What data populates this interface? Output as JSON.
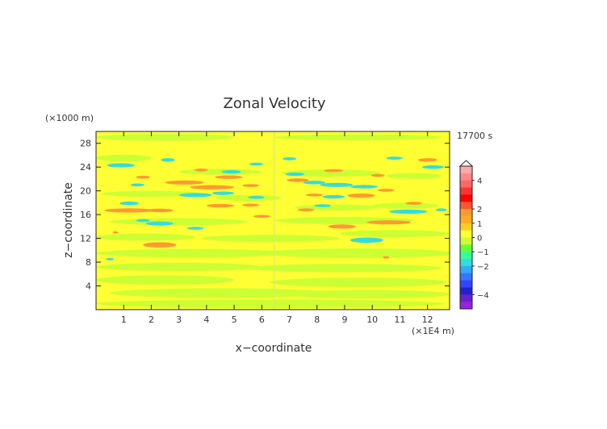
{
  "chart_data": {
    "type": "heatmap",
    "title": "Zonal Velocity",
    "xlabel": "x−coordinate",
    "ylabel": "z−coordinate",
    "x_unit": "(×1E4 m)",
    "y_unit": "(×1000 m)",
    "time_label": "17700 s",
    "x_ticks": [
      "1",
      "2",
      "3",
      "4",
      "5",
      "6",
      "7",
      "8",
      "9",
      "10",
      "11",
      "12"
    ],
    "y_ticks": [
      "4",
      "8",
      "12",
      "16",
      "20",
      "24",
      "28"
    ],
    "xlim": [
      0,
      12.8
    ],
    "ylim": [
      0,
      30
    ],
    "colorbar": {
      "labels": [
        "4",
        "2",
        "1",
        "0",
        "−1",
        "−2",
        "−4"
      ],
      "label_values": [
        4,
        2,
        1,
        0,
        -1,
        -2,
        -4
      ],
      "range": [
        -5,
        5
      ]
    },
    "colors": {
      "background": "#ffff33",
      "neutral": "#ccff33",
      "pos1": "#ff9933",
      "neg1": "#33dddd"
    },
    "regions": [
      {
        "type": "neutral",
        "x": 2.5,
        "y": 29,
        "rx": 2.5,
        "ry": 0.6
      },
      {
        "type": "neutral",
        "x": 9.5,
        "y": 29,
        "rx": 3,
        "ry": 0.5
      },
      {
        "type": "neutral",
        "x": 1,
        "y": 25.5,
        "rx": 1,
        "ry": 0.6
      },
      {
        "type": "neutral",
        "x": 4.5,
        "y": 23.2,
        "rx": 1.5,
        "ry": 0.5
      },
      {
        "type": "neutral",
        "x": 8.5,
        "y": 23,
        "rx": 1.8,
        "ry": 0.6
      },
      {
        "type": "neutral",
        "x": 11.5,
        "y": 22.5,
        "rx": 1,
        "ry": 0.5
      },
      {
        "type": "neutral",
        "x": 2,
        "y": 19.5,
        "rx": 1.8,
        "ry": 0.5
      },
      {
        "type": "neutral",
        "x": 5.5,
        "y": 18.8,
        "rx": 1.2,
        "ry": 0.5
      },
      {
        "type": "neutral",
        "x": 8.7,
        "y": 17.2,
        "rx": 1.5,
        "ry": 0.5
      },
      {
        "type": "neutral",
        "x": 11.2,
        "y": 17.5,
        "rx": 1.2,
        "ry": 0.5
      },
      {
        "type": "neutral",
        "x": 3,
        "y": 14.8,
        "rx": 2.5,
        "ry": 0.6
      },
      {
        "type": "neutral",
        "x": 9,
        "y": 15,
        "rx": 2.5,
        "ry": 0.6
      },
      {
        "type": "neutral",
        "x": 1.8,
        "y": 12.2,
        "rx": 1.8,
        "ry": 0.6
      },
      {
        "type": "neutral",
        "x": 6.3,
        "y": 12,
        "rx": 2.5,
        "ry": 0.6
      },
      {
        "type": "neutral",
        "x": 10.8,
        "y": 12.8,
        "rx": 2,
        "ry": 0.6
      },
      {
        "type": "neutral",
        "x": 3.5,
        "y": 9.5,
        "rx": 3.5,
        "ry": 0.7
      },
      {
        "type": "neutral",
        "x": 9.5,
        "y": 9.5,
        "rx": 3.5,
        "ry": 0.8
      },
      {
        "type": "neutral",
        "x": 3,
        "y": 7.2,
        "rx": 3,
        "ry": 0.7
      },
      {
        "type": "neutral",
        "x": 9,
        "y": 7,
        "rx": 3.5,
        "ry": 0.7
      },
      {
        "type": "neutral",
        "x": 2.5,
        "y": 5,
        "rx": 2.5,
        "ry": 0.8
      },
      {
        "type": "neutral",
        "x": 9.5,
        "y": 4.6,
        "rx": 3.2,
        "ry": 0.8
      },
      {
        "type": "neutral",
        "x": 4.5,
        "y": 2.8,
        "rx": 4,
        "ry": 0.8
      },
      {
        "type": "neutral",
        "x": 9.8,
        "y": 2.6,
        "rx": 3,
        "ry": 0.7
      },
      {
        "type": "neutral",
        "x": 6.3,
        "y": 1,
        "rx": 6.3,
        "ry": 0.7
      },
      {
        "type": "neg1",
        "x": 0.9,
        "y": 24.3,
        "rx": 0.5,
        "ry": 0.35
      },
      {
        "type": "neg1",
        "x": 2.6,
        "y": 25.2,
        "rx": 0.25,
        "ry": 0.3
      },
      {
        "type": "neg1",
        "x": 4.9,
        "y": 23.2,
        "rx": 0.35,
        "ry": 0.3
      },
      {
        "type": "neg1",
        "x": 5.8,
        "y": 24.5,
        "rx": 0.25,
        "ry": 0.25
      },
      {
        "type": "neg1",
        "x": 3.6,
        "y": 19.3,
        "rx": 0.6,
        "ry": 0.35
      },
      {
        "type": "neg1",
        "x": 4.6,
        "y": 19.6,
        "rx": 0.4,
        "ry": 0.3
      },
      {
        "type": "neg1",
        "x": 1.2,
        "y": 17.9,
        "rx": 0.35,
        "ry": 0.3
      },
      {
        "type": "neg1",
        "x": 5.8,
        "y": 18.9,
        "rx": 0.3,
        "ry": 0.25
      },
      {
        "type": "neg1",
        "x": 1.5,
        "y": 21,
        "rx": 0.25,
        "ry": 0.25
      },
      {
        "type": "neg1",
        "x": 1.7,
        "y": 15,
        "rx": 0.25,
        "ry": 0.25
      },
      {
        "type": "neg1",
        "x": 2.3,
        "y": 14.5,
        "rx": 0.5,
        "ry": 0.35
      },
      {
        "type": "neg1",
        "x": 3.6,
        "y": 13.7,
        "rx": 0.3,
        "ry": 0.25
      },
      {
        "type": "neg1",
        "x": 7.2,
        "y": 22.8,
        "rx": 0.35,
        "ry": 0.3
      },
      {
        "type": "neg1",
        "x": 7.9,
        "y": 21.4,
        "rx": 0.4,
        "ry": 0.3
      },
      {
        "type": "neg1",
        "x": 8.7,
        "y": 21,
        "rx": 0.6,
        "ry": 0.35
      },
      {
        "type": "neg1",
        "x": 9.7,
        "y": 20.7,
        "rx": 0.5,
        "ry": 0.3
      },
      {
        "type": "neg1",
        "x": 8.6,
        "y": 19,
        "rx": 0.4,
        "ry": 0.3
      },
      {
        "type": "neg1",
        "x": 8.2,
        "y": 17.5,
        "rx": 0.3,
        "ry": 0.25
      },
      {
        "type": "neg1",
        "x": 11.3,
        "y": 16.5,
        "rx": 0.7,
        "ry": 0.35
      },
      {
        "type": "neg1",
        "x": 12.5,
        "y": 16.8,
        "rx": 0.2,
        "ry": 0.25
      },
      {
        "type": "neg1",
        "x": 12.2,
        "y": 24,
        "rx": 0.4,
        "ry": 0.3
      },
      {
        "type": "neg1",
        "x": 10.8,
        "y": 25.5,
        "rx": 0.3,
        "ry": 0.25
      },
      {
        "type": "neg1",
        "x": 7,
        "y": 25.4,
        "rx": 0.25,
        "ry": 0.25
      },
      {
        "type": "neg1",
        "x": 9.8,
        "y": 11.7,
        "rx": 0.6,
        "ry": 0.45
      },
      {
        "type": "neg1",
        "x": 0.5,
        "y": 8.5,
        "rx": 0.15,
        "ry": 0.2
      },
      {
        "type": "pos1",
        "x": 4.8,
        "y": 22.3,
        "rx": 0.5,
        "ry": 0.3
      },
      {
        "type": "pos1",
        "x": 3.2,
        "y": 21.4,
        "rx": 0.7,
        "ry": 0.35
      },
      {
        "type": "pos1",
        "x": 4.2,
        "y": 20.6,
        "rx": 0.8,
        "ry": 0.35
      },
      {
        "type": "pos1",
        "x": 5.6,
        "y": 20.9,
        "rx": 0.3,
        "ry": 0.25
      },
      {
        "type": "pos1",
        "x": 1.2,
        "y": 16.7,
        "rx": 0.9,
        "ry": 0.35
      },
      {
        "type": "pos1",
        "x": 2.3,
        "y": 16.7,
        "rx": 0.5,
        "ry": 0.3
      },
      {
        "type": "pos1",
        "x": 4.5,
        "y": 17.5,
        "rx": 0.5,
        "ry": 0.3
      },
      {
        "type": "pos1",
        "x": 5.6,
        "y": 17.6,
        "rx": 0.3,
        "ry": 0.25
      },
      {
        "type": "pos1",
        "x": 6,
        "y": 15.7,
        "rx": 0.3,
        "ry": 0.25
      },
      {
        "type": "pos1",
        "x": 3.8,
        "y": 23.5,
        "rx": 0.25,
        "ry": 0.25
      },
      {
        "type": "pos1",
        "x": 1.7,
        "y": 22.3,
        "rx": 0.25,
        "ry": 0.25
      },
      {
        "type": "pos1",
        "x": 2.3,
        "y": 10.9,
        "rx": 0.6,
        "ry": 0.45
      },
      {
        "type": "pos1",
        "x": 7.3,
        "y": 21.8,
        "rx": 0.4,
        "ry": 0.3
      },
      {
        "type": "pos1",
        "x": 8.6,
        "y": 23.4,
        "rx": 0.35,
        "ry": 0.25
      },
      {
        "type": "pos1",
        "x": 9.6,
        "y": 19.2,
        "rx": 0.5,
        "ry": 0.35
      },
      {
        "type": "pos1",
        "x": 10.5,
        "y": 20.1,
        "rx": 0.3,
        "ry": 0.25
      },
      {
        "type": "pos1",
        "x": 7.9,
        "y": 19.3,
        "rx": 0.3,
        "ry": 0.25
      },
      {
        "type": "pos1",
        "x": 10.6,
        "y": 14.7,
        "rx": 0.8,
        "ry": 0.35
      },
      {
        "type": "pos1",
        "x": 8.9,
        "y": 14,
        "rx": 0.5,
        "ry": 0.35
      },
      {
        "type": "pos1",
        "x": 11.5,
        "y": 17.9,
        "rx": 0.3,
        "ry": 0.25
      },
      {
        "type": "pos1",
        "x": 12,
        "y": 25.2,
        "rx": 0.35,
        "ry": 0.3
      },
      {
        "type": "pos1",
        "x": 10.2,
        "y": 22.6,
        "rx": 0.25,
        "ry": 0.25
      },
      {
        "type": "pos1",
        "x": 7.6,
        "y": 16.8,
        "rx": 0.3,
        "ry": 0.25
      },
      {
        "type": "pos1",
        "x": 10.5,
        "y": 8.8,
        "rx": 0.12,
        "ry": 0.2
      },
      {
        "type": "pos1",
        "x": 0.7,
        "y": 13,
        "rx": 0.1,
        "ry": 0.2
      }
    ]
  }
}
